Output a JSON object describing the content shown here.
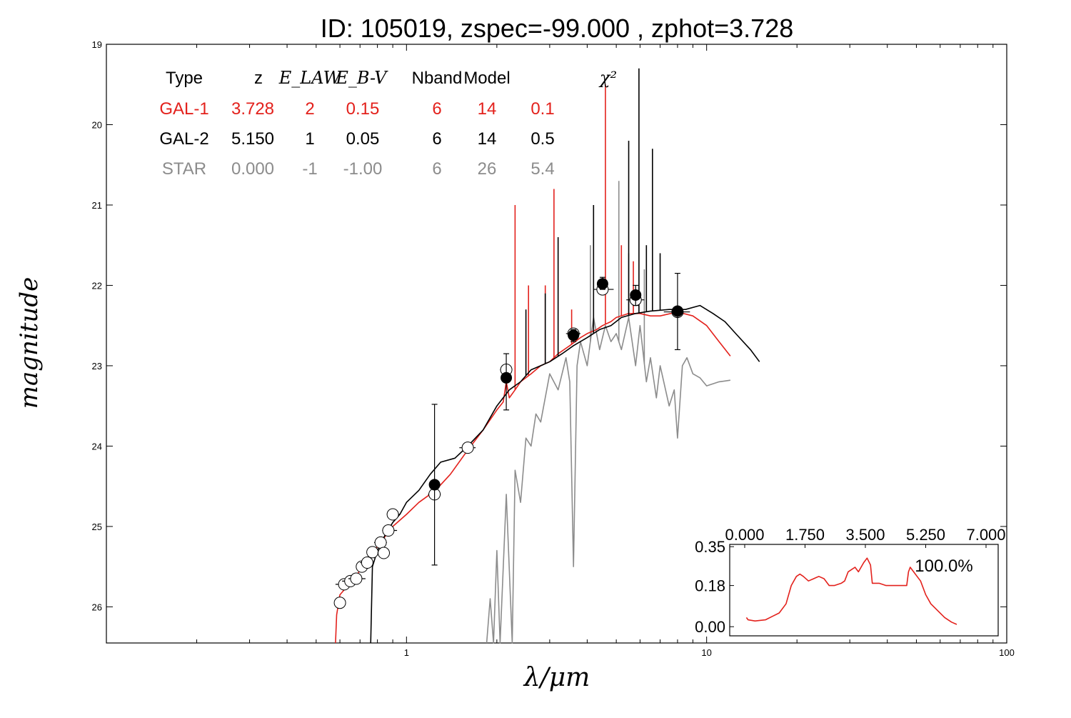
{
  "chart_data": {
    "type": "line",
    "title": "ID:  105019, zspec=-99.000 , zphot=3.728",
    "xlabel": "λ/μm",
    "ylabel": "magnitude",
    "x_scale": "log",
    "xlim": [
      0.1,
      100
    ],
    "ylim": [
      26.45,
      19.0
    ],
    "x_ticks": [
      1,
      10,
      100
    ],
    "x_tick_labels": [
      "1",
      "10",
      "100"
    ],
    "y_ticks": [
      19,
      20,
      21,
      22,
      23,
      24,
      25,
      26
    ],
    "y_tick_labels": [
      "19",
      "20",
      "21",
      "22",
      "23",
      "24",
      "25",
      "26"
    ],
    "grid": false,
    "colors": {
      "gal1": "#e3211c",
      "gal2": "#000000",
      "star": "#8c8c8c"
    },
    "fit_table": {
      "headers": [
        "Type",
        "z",
        "E_LAW",
        "E_B-V",
        "Nband",
        "Model",
        "χ²"
      ],
      "rows": [
        {
          "series": "gal1",
          "cells": [
            "GAL-1",
            "3.728",
            "2",
            "0.15",
            "6",
            "14",
            "0.1"
          ]
        },
        {
          "series": "gal2",
          "cells": [
            "GAL-2",
            "5.150",
            "1",
            "0.05",
            "6",
            "14",
            "0.5"
          ]
        },
        {
          "series": "star",
          "cells": [
            "STAR",
            "0.000",
            "-1",
            "-1.00",
            "6",
            "26",
            "5.4"
          ]
        }
      ]
    },
    "series": [
      {
        "key": "gal1",
        "color": "#e3211c",
        "points": [
          [
            0.58,
            26.45
          ],
          [
            0.585,
            26.1
          ],
          [
            0.6,
            25.85
          ],
          [
            0.65,
            25.7
          ],
          [
            0.7,
            25.55
          ],
          [
            0.8,
            25.25
          ],
          [
            0.9,
            25.0
          ],
          [
            1.0,
            24.85
          ],
          [
            1.1,
            24.7
          ],
          [
            1.25,
            24.55
          ],
          [
            1.4,
            24.35
          ],
          [
            1.6,
            24.05
          ],
          [
            1.8,
            23.8
          ],
          [
            2.0,
            23.55
          ],
          [
            2.1,
            23.45
          ],
          [
            2.15,
            23.2
          ],
          [
            2.2,
            23.4
          ],
          [
            2.3,
            23.3
          ],
          [
            2.4,
            23.2
          ],
          [
            2.6,
            23.1
          ],
          [
            2.8,
            23.0
          ],
          [
            3.0,
            22.95
          ],
          [
            3.2,
            22.85
          ],
          [
            3.5,
            22.75
          ],
          [
            3.8,
            22.65
          ],
          [
            4.0,
            22.6
          ],
          [
            4.3,
            22.55
          ],
          [
            4.5,
            22.5
          ],
          [
            4.8,
            22.45
          ],
          [
            5.0,
            22.4
          ],
          [
            5.5,
            22.35
          ],
          [
            6.0,
            22.35
          ],
          [
            6.5,
            22.38
          ],
          [
            7.0,
            22.38
          ],
          [
            8.0,
            22.33
          ],
          [
            9.0,
            22.38
          ],
          [
            10.0,
            22.5
          ],
          [
            11.0,
            22.7
          ],
          [
            12.0,
            22.88
          ]
        ],
        "lines": [
          [
            2.3,
            21.0
          ],
          [
            2.55,
            22.0
          ],
          [
            2.9,
            22.0
          ],
          [
            3.1,
            20.8
          ],
          [
            3.55,
            22.3
          ],
          [
            4.6,
            19.5
          ],
          [
            5.2,
            21.5
          ],
          [
            5.7,
            21.7
          ]
        ]
      },
      {
        "key": "gal2",
        "color": "#000000",
        "points": [
          [
            0.76,
            26.45
          ],
          [
            0.77,
            25.5
          ],
          [
            0.8,
            25.3
          ],
          [
            0.85,
            25.1
          ],
          [
            0.9,
            24.95
          ],
          [
            0.95,
            24.85
          ],
          [
            1.0,
            24.7
          ],
          [
            1.1,
            24.55
          ],
          [
            1.2,
            24.35
          ],
          [
            1.3,
            24.2
          ],
          [
            1.45,
            24.15
          ],
          [
            1.6,
            24.0
          ],
          [
            1.8,
            23.8
          ],
          [
            2.0,
            23.5
          ],
          [
            2.2,
            23.3
          ],
          [
            2.4,
            23.2
          ],
          [
            2.6,
            23.05
          ],
          [
            2.8,
            23.0
          ],
          [
            3.0,
            22.95
          ],
          [
            3.3,
            22.85
          ],
          [
            3.6,
            22.75
          ],
          [
            4.0,
            22.65
          ],
          [
            4.4,
            22.55
          ],
          [
            4.8,
            22.5
          ],
          [
            5.2,
            22.4
          ],
          [
            5.8,
            22.35
          ],
          [
            6.5,
            22.32
          ],
          [
            7.5,
            22.3
          ],
          [
            8.5,
            22.3
          ],
          [
            9.5,
            22.25
          ],
          [
            10.5,
            22.35
          ],
          [
            11.5,
            22.45
          ],
          [
            12.5,
            22.6
          ],
          [
            14.0,
            22.8
          ],
          [
            15.0,
            22.95
          ]
        ],
        "lines": [
          [
            2.5,
            22.3
          ],
          [
            2.9,
            22.1
          ],
          [
            3.2,
            21.4
          ],
          [
            4.2,
            21.0
          ],
          [
            5.5,
            20.2
          ],
          [
            5.95,
            19.3
          ],
          [
            6.3,
            21.5
          ],
          [
            6.6,
            20.3
          ],
          [
            7.0,
            21.6
          ]
        ]
      },
      {
        "key": "star",
        "color": "#8c8c8c",
        "points": [
          [
            1.85,
            26.45
          ],
          [
            1.9,
            25.9
          ],
          [
            1.95,
            26.45
          ],
          [
            2.0,
            25.3
          ],
          [
            2.05,
            26.45
          ],
          [
            2.15,
            24.6
          ],
          [
            2.25,
            26.45
          ],
          [
            2.3,
            24.3
          ],
          [
            2.4,
            24.7
          ],
          [
            2.5,
            23.9
          ],
          [
            2.6,
            24.0
          ],
          [
            2.7,
            23.6
          ],
          [
            2.8,
            23.7
          ],
          [
            3.0,
            23.1
          ],
          [
            3.2,
            23.3
          ],
          [
            3.4,
            22.9
          ],
          [
            3.5,
            23.2
          ],
          [
            3.6,
            25.5
          ],
          [
            3.7,
            23.0
          ],
          [
            3.8,
            22.7
          ],
          [
            4.0,
            23.0
          ],
          [
            4.2,
            22.4
          ],
          [
            4.4,
            22.8
          ],
          [
            4.6,
            22.5
          ],
          [
            4.8,
            22.7
          ],
          [
            5.0,
            22.6
          ],
          [
            5.2,
            22.8
          ],
          [
            5.5,
            22.4
          ],
          [
            5.8,
            23.0
          ],
          [
            6.0,
            22.5
          ],
          [
            6.3,
            23.2
          ],
          [
            6.5,
            22.9
          ],
          [
            6.8,
            23.4
          ],
          [
            7.0,
            23.0
          ],
          [
            7.5,
            23.5
          ],
          [
            7.8,
            23.3
          ],
          [
            8.0,
            23.9
          ],
          [
            8.3,
            23.0
          ],
          [
            8.6,
            22.9
          ],
          [
            9.0,
            23.1
          ],
          [
            9.5,
            23.15
          ],
          [
            10.0,
            23.25
          ],
          [
            11.0,
            23.2
          ],
          [
            12.0,
            23.18
          ]
        ],
        "lines": [
          [
            4.1,
            21.5
          ],
          [
            5.1,
            20.7
          ],
          [
            5.5,
            21.6
          ],
          [
            6.2,
            21.8
          ]
        ]
      }
    ],
    "photometry": {
      "observed": [
        {
          "x": 0.6,
          "y": 25.95,
          "yerr": 0,
          "xerr": [
            0.58,
            0.6
          ]
        },
        {
          "x": 0.62,
          "y": 25.72,
          "yerr": 0,
          "xerr": [
            0.58,
            0.67
          ]
        },
        {
          "x": 0.65,
          "y": 25.68,
          "yerr": 0,
          "xerr": [
            0.61,
            0.7
          ]
        },
        {
          "x": 0.68,
          "y": 25.65,
          "yerr": 0,
          "xerr": [
            0.64,
            0.73
          ]
        },
        {
          "x": 0.71,
          "y": 25.5,
          "yerr": 0,
          "xerr": [
            0.68,
            0.75
          ]
        },
        {
          "x": 0.74,
          "y": 25.45,
          "yerr": 0,
          "xerr": [
            0.7,
            0.78
          ]
        },
        {
          "x": 0.77,
          "y": 25.32,
          "yerr": 0,
          "xerr": [
            0.74,
            0.8
          ]
        },
        {
          "x": 0.82,
          "y": 25.2,
          "yerr": 0,
          "xerr": [
            0.78,
            0.86
          ]
        },
        {
          "x": 0.84,
          "y": 25.33,
          "yerr": 0,
          "xerr": [
            0.8,
            0.88
          ]
        },
        {
          "x": 0.87,
          "y": 25.05,
          "yerr": 0,
          "xerr": [
            0.83,
            0.93
          ]
        },
        {
          "x": 0.9,
          "y": 24.85,
          "yerr": 0,
          "xerr": [
            0.86,
            0.95
          ]
        },
        {
          "x": 1.24,
          "y": 24.6,
          "yerr": 0,
          "xerr": [
            1.18,
            1.3
          ]
        },
        {
          "x": 1.6,
          "y": 24.02,
          "yerr": 0,
          "xerr": [
            1.5,
            1.7
          ]
        },
        {
          "x": 2.15,
          "y": 23.05,
          "yerr": 0,
          "xerr": [
            2.05,
            2.25
          ]
        },
        {
          "x": 3.6,
          "y": 22.6,
          "yerr": 0,
          "xerr": [
            3.4,
            3.8
          ]
        },
        {
          "x": 4.5,
          "y": 22.05,
          "yerr": 0,
          "xerr": [
            4.2,
            4.9
          ]
        },
        {
          "x": 5.8,
          "y": 22.18,
          "yerr": 0,
          "xerr": [
            5.4,
            6.2
          ]
        },
        {
          "x": 8.0,
          "y": 22.33,
          "yerr": 0,
          "xerr": [
            7.2,
            8.8
          ]
        }
      ],
      "model": [
        {
          "x": 1.24,
          "y": 24.48,
          "ylo": 23.48,
          "yhi": 25.48
        },
        {
          "x": 2.15,
          "y": 23.15,
          "ylo": 22.85,
          "yhi": 23.55
        },
        {
          "x": 3.6,
          "y": 22.62,
          "ylo": 22.55,
          "yhi": 22.7
        },
        {
          "x": 4.5,
          "y": 21.98,
          "ylo": 21.9,
          "yhi": 22.05
        },
        {
          "x": 5.8,
          "y": 22.12,
          "ylo": 22.0,
          "yhi": 22.25
        },
        {
          "x": 8.0,
          "y": 22.32,
          "ylo": 21.85,
          "yhi": 22.8
        }
      ]
    },
    "inset": {
      "type": "line",
      "x_ticks": [
        0.0,
        1.75,
        3.5,
        5.25,
        7.0
      ],
      "x_tick_labels": [
        "0.000",
        "1.750",
        "3.500",
        "5.250",
        "7.000"
      ],
      "y_ticks": [
        0.0,
        0.18,
        0.35
      ],
      "y_tick_labels": [
        "0.00",
        "0.18",
        "0.35"
      ],
      "xlim": [
        0.0,
        7.0
      ],
      "ylim": [
        -0.04,
        0.36
      ],
      "annotation": "100.0%",
      "color": "#e3211c",
      "points": [
        [
          0.05,
          0.04
        ],
        [
          0.1,
          0.03
        ],
        [
          0.3,
          0.025
        ],
        [
          0.6,
          0.03
        ],
        [
          0.8,
          0.045
        ],
        [
          1.0,
          0.06
        ],
        [
          1.2,
          0.1
        ],
        [
          1.35,
          0.18
        ],
        [
          1.5,
          0.22
        ],
        [
          1.6,
          0.23
        ],
        [
          1.7,
          0.22
        ],
        [
          1.85,
          0.2
        ],
        [
          2.0,
          0.21
        ],
        [
          2.15,
          0.22
        ],
        [
          2.3,
          0.21
        ],
        [
          2.45,
          0.18
        ],
        [
          2.6,
          0.18
        ],
        [
          2.8,
          0.19
        ],
        [
          2.9,
          0.2
        ],
        [
          3.0,
          0.24
        ],
        [
          3.1,
          0.25
        ],
        [
          3.2,
          0.26
        ],
        [
          3.3,
          0.24
        ],
        [
          3.45,
          0.28
        ],
        [
          3.55,
          0.3
        ],
        [
          3.65,
          0.27
        ],
        [
          3.7,
          0.19
        ],
        [
          3.9,
          0.19
        ],
        [
          4.1,
          0.18
        ],
        [
          4.3,
          0.18
        ],
        [
          4.6,
          0.18
        ],
        [
          4.7,
          0.18
        ],
        [
          4.75,
          0.24
        ],
        [
          4.8,
          0.26
        ],
        [
          4.9,
          0.24
        ],
        [
          5.0,
          0.22
        ],
        [
          5.1,
          0.2
        ],
        [
          5.25,
          0.14
        ],
        [
          5.4,
          0.1
        ],
        [
          5.6,
          0.07
        ],
        [
          5.8,
          0.04
        ],
        [
          6.0,
          0.02
        ],
        [
          6.15,
          0.01
        ]
      ]
    }
  }
}
